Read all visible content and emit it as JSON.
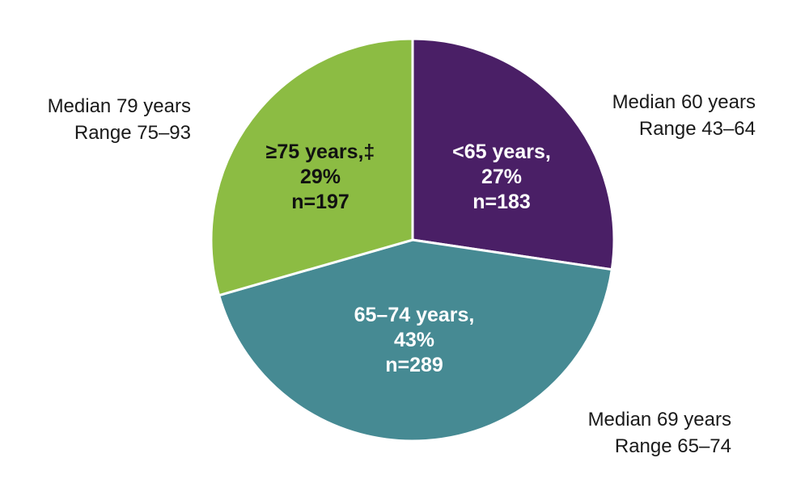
{
  "chart_data": {
    "type": "pie",
    "slices": [
      {
        "label": "<65 years,",
        "percent_text": "27%",
        "n_text": "n=183",
        "value": 183,
        "percent": 27,
        "color": "#4a1f66",
        "text_color": "#ffffff",
        "annotation": {
          "line1": "Median 60 years",
          "line2": "Range 43–64",
          "anchor": "end"
        }
      },
      {
        "label": "65–74 years,",
        "percent_text": "43%",
        "n_text": "n=289",
        "value": 289,
        "percent": 43,
        "color": "#468a93",
        "text_color": "#ffffff",
        "annotation": {
          "line1": "Median 69 years",
          "line2": "Range 65–74",
          "anchor": "end"
        }
      },
      {
        "label": "≥75 years,‡",
        "percent_text": "29%",
        "n_text": "n=197",
        "value": 197,
        "percent": 29,
        "color": "#8cbc43",
        "text_color": "#111111",
        "annotation": {
          "line1": "Median 79 years",
          "line2": "Range 75–93",
          "anchor": "end"
        }
      }
    ],
    "start_angle_deg": 0,
    "direction": "clockwise",
    "separator_color": "#ffffff"
  }
}
